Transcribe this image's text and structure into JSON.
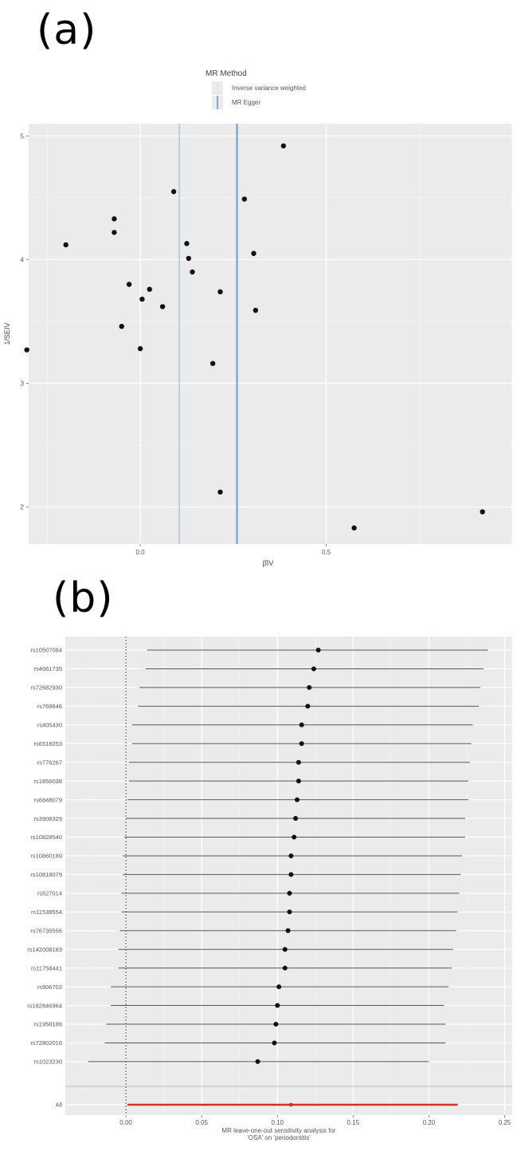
{
  "panel_a_label": "(a)",
  "panel_b_label": "(b)",
  "chart_data": [
    {
      "type": "scatter",
      "panel": "a",
      "xlabel": "β̂IV",
      "ylabel": "1/SEIV",
      "xlim": [
        -0.3,
        1.0
      ],
      "ylim": [
        1.7,
        5.1
      ],
      "xticks": [
        0.0,
        0.5
      ],
      "xtick_labels": [
        "0.0",
        "0.5"
      ],
      "yticks": [
        2,
        3,
        4,
        5
      ],
      "ytick_labels": [
        "2",
        "3",
        "4",
        "5"
      ],
      "grid": true,
      "legend": {
        "title": "MR Method",
        "position": "top",
        "entries": [
          {
            "label": "Inverse variance weighted",
            "color": "#dfe6ef"
          },
          {
            "label": "MR Egger",
            "color": "#7fa9d1"
          }
        ]
      },
      "vlines": [
        {
          "method": "Inverse variance weighted",
          "x": 0.105,
          "color": "#a9c2dc"
        },
        {
          "method": "MR Egger",
          "x": 0.26,
          "color": "#7fa9d1"
        }
      ],
      "points": [
        {
          "x": -0.305,
          "y": 3.27
        },
        {
          "x": -0.2,
          "y": 4.12
        },
        {
          "x": -0.07,
          "y": 4.33
        },
        {
          "x": -0.07,
          "y": 4.22
        },
        {
          "x": -0.05,
          "y": 3.46
        },
        {
          "x": -0.03,
          "y": 3.8
        },
        {
          "x": 0.0,
          "y": 3.28
        },
        {
          "x": 0.005,
          "y": 3.68
        },
        {
          "x": 0.025,
          "y": 3.76
        },
        {
          "x": 0.06,
          "y": 3.62
        },
        {
          "x": 0.09,
          "y": 4.55
        },
        {
          "x": 0.125,
          "y": 4.13
        },
        {
          "x": 0.13,
          "y": 4.01
        },
        {
          "x": 0.14,
          "y": 3.9
        },
        {
          "x": 0.195,
          "y": 3.16
        },
        {
          "x": 0.215,
          "y": 3.74
        },
        {
          "x": 0.215,
          "y": 2.12
        },
        {
          "x": 0.28,
          "y": 4.49
        },
        {
          "x": 0.305,
          "y": 4.05
        },
        {
          "x": 0.31,
          "y": 3.59
        },
        {
          "x": 0.385,
          "y": 4.92
        },
        {
          "x": 0.575,
          "y": 1.83
        },
        {
          "x": 0.92,
          "y": 1.96
        }
      ]
    },
    {
      "type": "forest",
      "panel": "b",
      "xlabel_line1": "MR leave-one-out sensitivity analysis for",
      "xlabel_line2": "'OSA' on 'periodontitis'",
      "xlim": [
        -0.04,
        0.255
      ],
      "xticks": [
        0.0,
        0.05,
        0.1,
        0.15,
        0.2,
        0.25
      ],
      "xtick_labels": [
        "0.00",
        "0.05",
        "0.10",
        "0.15",
        "0.20",
        "0.25"
      ],
      "grid": true,
      "ref_line": 0,
      "rows": [
        {
          "snp": "rs10507084",
          "b": 0.127,
          "lo": 0.014,
          "hi": 0.239
        },
        {
          "snp": "rs4661735",
          "b": 0.124,
          "lo": 0.013,
          "hi": 0.236
        },
        {
          "snp": "rs72682930",
          "b": 0.121,
          "lo": 0.009,
          "hi": 0.234
        },
        {
          "snp": "rs769646",
          "b": 0.12,
          "lo": 0.008,
          "hi": 0.233
        },
        {
          "snp": "rs405430",
          "b": 0.116,
          "lo": 0.004,
          "hi": 0.229
        },
        {
          "snp": "rs6518253",
          "b": 0.116,
          "lo": 0.004,
          "hi": 0.228
        },
        {
          "snp": "rs776267",
          "b": 0.114,
          "lo": 0.002,
          "hi": 0.227
        },
        {
          "snp": "rs1856038",
          "b": 0.114,
          "lo": 0.002,
          "hi": 0.226
        },
        {
          "snp": "rs6848079",
          "b": 0.113,
          "lo": 0.001,
          "hi": 0.226
        },
        {
          "snp": "rs3908329",
          "b": 0.112,
          "lo": 0.0,
          "hi": 0.224
        },
        {
          "snp": "rs10828540",
          "b": 0.111,
          "lo": -0.001,
          "hi": 0.224
        },
        {
          "snp": "rs10860189",
          "b": 0.109,
          "lo": -0.002,
          "hi": 0.222
        },
        {
          "snp": "rs10818079",
          "b": 0.109,
          "lo": -0.002,
          "hi": 0.221
        },
        {
          "snp": "rs527014",
          "b": 0.108,
          "lo": -0.003,
          "hi": 0.22
        },
        {
          "snp": "rs11538554",
          "b": 0.108,
          "lo": -0.003,
          "hi": 0.219
        },
        {
          "snp": "rs76735556",
          "b": 0.107,
          "lo": -0.004,
          "hi": 0.218
        },
        {
          "snp": "rs142008183",
          "b": 0.105,
          "lo": -0.005,
          "hi": 0.216
        },
        {
          "snp": "rs11758441",
          "b": 0.105,
          "lo": -0.005,
          "hi": 0.215
        },
        {
          "snp": "rs906702",
          "b": 0.101,
          "lo": -0.01,
          "hi": 0.213
        },
        {
          "snp": "rs182846964",
          "b": 0.1,
          "lo": -0.01,
          "hi": 0.21
        },
        {
          "snp": "rs1958186",
          "b": 0.099,
          "lo": -0.013,
          "hi": 0.211
        },
        {
          "snp": "rs72802016",
          "b": 0.098,
          "lo": -0.014,
          "hi": 0.211
        },
        {
          "snp": "rs1023230",
          "b": 0.087,
          "lo": -0.025,
          "hi": 0.2
        }
      ],
      "overall": {
        "snp": "All",
        "b": 0.109,
        "lo": 0.001,
        "hi": 0.219,
        "color": "#d32f2f"
      }
    }
  ]
}
